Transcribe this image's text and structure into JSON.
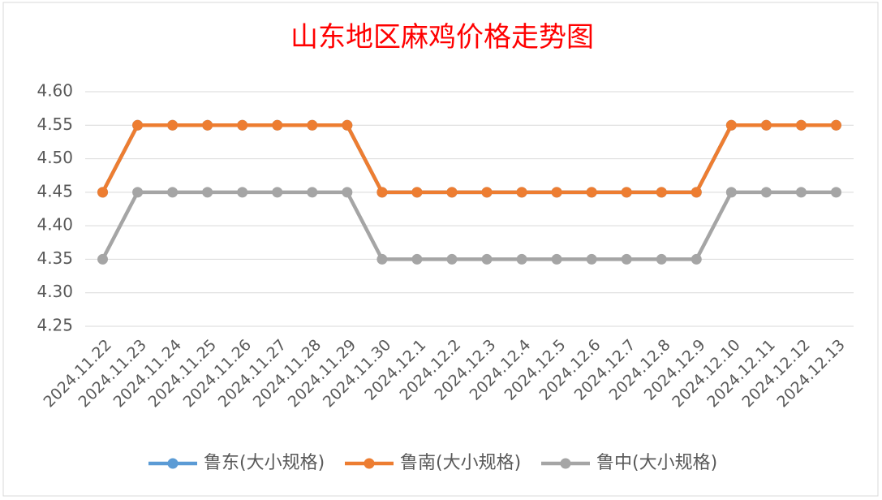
{
  "chart_data": {
    "type": "line",
    "title": "山东地区麻鸡价格走势图",
    "categories": [
      "2024.11.22",
      "2024.11.23",
      "2024.11.24",
      "2024.11.25",
      "2024.11.26",
      "2024.11.27",
      "2024.11.28",
      "2024.11.29",
      "2024.11.30",
      "2024.12.1",
      "2024.12.2",
      "2024.12.3",
      "2024.12.4",
      "2024.12.5",
      "2024.12.6",
      "2024.12.7",
      "2024.12.8",
      "2024.12.9",
      "2024.12.10",
      "2024.12.11",
      "2024.12.12",
      "2024.12.13"
    ],
    "series": [
      {
        "name": "鲁东(大小规格)",
        "color": "#5b9bd5",
        "values": [
          4.45,
          4.55,
          4.55,
          4.55,
          4.55,
          4.55,
          4.55,
          4.55,
          4.45,
          4.45,
          4.45,
          4.45,
          4.45,
          4.45,
          4.45,
          4.45,
          4.45,
          4.45,
          4.55,
          4.55,
          4.55,
          4.55
        ]
      },
      {
        "name": "鲁南(大小规格)",
        "color": "#ed7d31",
        "values": [
          4.45,
          4.55,
          4.55,
          4.55,
          4.55,
          4.55,
          4.55,
          4.55,
          4.45,
          4.45,
          4.45,
          4.45,
          4.45,
          4.45,
          4.45,
          4.45,
          4.45,
          4.45,
          4.55,
          4.55,
          4.55,
          4.55
        ]
      },
      {
        "name": "鲁中(大小规格)",
        "color": "#a5a5a5",
        "values": [
          4.35,
          4.45,
          4.45,
          4.45,
          4.45,
          4.45,
          4.45,
          4.45,
          4.35,
          4.35,
          4.35,
          4.35,
          4.35,
          4.35,
          4.35,
          4.35,
          4.35,
          4.35,
          4.45,
          4.45,
          4.45,
          4.45
        ]
      }
    ],
    "ylim": [
      4.25,
      4.6
    ],
    "yticks": [
      4.25,
      {
        "value": 4.3,
        "label": "4.30"
      },
      4.35,
      {
        "value": 4.4,
        "label": "4.40"
      },
      4.45,
      {
        "value": 4.5,
        "label": "4.50"
      },
      4.55,
      {
        "value": 4.6,
        "label": "4.60"
      }
    ],
    "grid": true,
    "legend": "bottom"
  }
}
